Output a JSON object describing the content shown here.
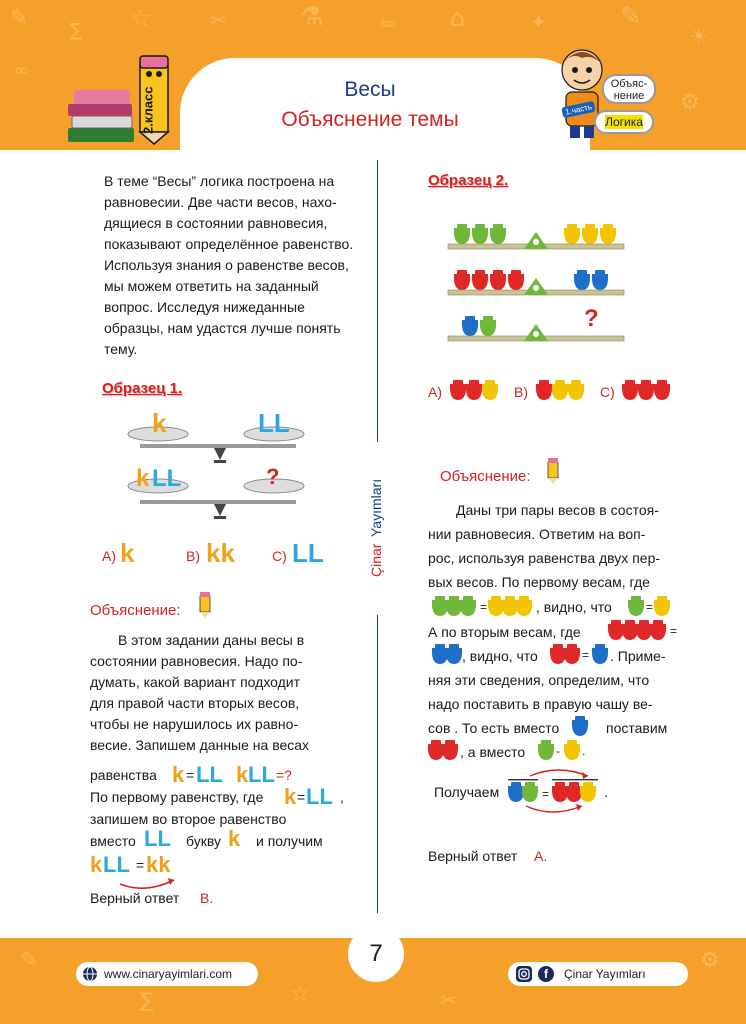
{
  "header": {
    "title": "Весы",
    "subtitle": "Объяснение  темы",
    "grade": "2.класс",
    "badge_1_line1": "Объяс-",
    "badge_1_line2": "нение",
    "badge_2": "Логика",
    "part_tag": "1.часть"
  },
  "intro": {
    "lines": [
      "В теме “Весы” логика построена на",
      "равновесии. Две части весов, нахо-",
      "дящиеся в состоянии равновесия,",
      "показывают определённое равенство.",
      "Используя знания о равенстве весов,",
      "мы можем ответить на заданный",
      "вопрос. Исследуя нижеданные",
      "образцы, нам удастся лучше понять",
      "тему."
    ]
  },
  "sample1": {
    "title": "Образец 1.",
    "question_mark": "?",
    "options": [
      {
        "letter": "A)"
      },
      {
        "letter": "B)"
      },
      {
        "letter": "C)"
      }
    ],
    "explanation_title": "Объяснение:",
    "explanation_lines": [
      "В этом задании даны весы в",
      "состоянии равновесия. Надо по-",
      "думать, какой вариант подходит",
      "для правой части вторых весов,",
      "чтобы не нарушилось их равно-",
      "весие. Запишем данные на весах"
    ],
    "line_eq_prefix": "равенства",
    "eq_sign": "=",
    "eq_q": "=?",
    "line_first_prefix": "По первому равенству, где",
    "line_first_suffix": ",",
    "line_second": "запишем во второе равенство",
    "line_instead": "вместо",
    "line_letter": "букву",
    "line_get": "и получим",
    "answer_prefix": "Верный ответ",
    "answer": "B."
  },
  "sample2": {
    "title": "Образец 2.",
    "question_mark": "?",
    "options": [
      {
        "letter": "A)"
      },
      {
        "letter": "B)"
      },
      {
        "letter": "C)"
      }
    ],
    "explanation_title": "Объяснение:",
    "line1": "Даны три пары весов в состоя-",
    "line2": "нии равновесия. Ответим на воп-",
    "line3": "рос, используя равенства двух пер-",
    "line4": "вых весов. По первому весам, где",
    "line5_suffix": ", видно, что",
    "line6_prefix": "А по вторым весам, где",
    "line7_mid": ", видно, что",
    "line7_suffix": ". Приме-",
    "line8": "няя эти сведения, определим, что",
    "line9": "надо поставить в правую чашу ве-",
    "line10_prefix": "сов . То есть вместо",
    "line10_suffix": "поставим",
    "line11_mid": ", а  вместо",
    "line12_prefix": "Получаем",
    "line12_suffix": ".",
    "answer_prefix": "Верный ответ",
    "answer": "A."
  },
  "brand_vertical": {
    "part1": "Çinar",
    "part2": "Yayımları"
  },
  "footer": {
    "page_number": "7",
    "website": "www.cinaryayimlari.com",
    "social": "Çinar Yayımları"
  },
  "colors": {
    "orange": "#f6a02c",
    "red": "#d42222",
    "blue": "#1a3b8f",
    "green_weight": "#6fb83a",
    "yellow_weight": "#f2c500",
    "red_weight": "#e02828",
    "blue_weight": "#1e6fc8",
    "k_letter": "#f0a019",
    "l_letter": "#2aa8e0"
  }
}
